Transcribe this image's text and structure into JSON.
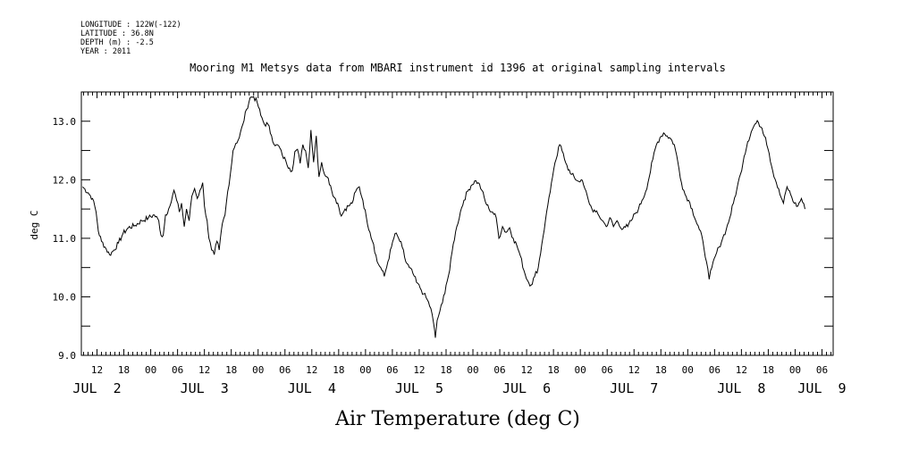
{
  "header": {
    "longitude": "LONGITUDE : 122W(-122)",
    "latitude": "LATITUDE : 36.8N",
    "depth": "DEPTH (m) : -2.5",
    "year": "YEAR : 2011"
  },
  "chart_data": {
    "type": "line",
    "title": "Mooring M1 Metsys data from MBARI instrument id 1396 at original sampling intervals",
    "xlabel": "Air Temperature (deg C)",
    "ylabel": "deg C",
    "ylim": [
      9.0,
      13.5
    ],
    "xlim": [
      8.5,
      176.5
    ],
    "x_units": "hours since JUL 2 00:00",
    "y_ticks": [
      {
        "value": 9.0,
        "label": "9.0"
      },
      {
        "value": 10.0,
        "label": "10.0"
      },
      {
        "value": 11.0,
        "label": "11.0"
      },
      {
        "value": 12.0,
        "label": "12.0"
      },
      {
        "value": 13.0,
        "label": "13.0"
      }
    ],
    "x_ticks": [
      {
        "value": 12,
        "label": "12"
      },
      {
        "value": 18,
        "label": "18"
      },
      {
        "value": 24,
        "label": "00"
      },
      {
        "value": 30,
        "label": "06"
      },
      {
        "value": 36,
        "label": "12"
      },
      {
        "value": 42,
        "label": "18"
      },
      {
        "value": 48,
        "label": "00"
      },
      {
        "value": 54,
        "label": "06"
      },
      {
        "value": 60,
        "label": "12"
      },
      {
        "value": 66,
        "label": "18"
      },
      {
        "value": 72,
        "label": "00"
      },
      {
        "value": 78,
        "label": "06"
      },
      {
        "value": 84,
        "label": "12"
      },
      {
        "value": 90,
        "label": "18"
      },
      {
        "value": 96,
        "label": "00"
      },
      {
        "value": 102,
        "label": "06"
      },
      {
        "value": 108,
        "label": "12"
      },
      {
        "value": 114,
        "label": "18"
      },
      {
        "value": 120,
        "label": "00"
      },
      {
        "value": 126,
        "label": "06"
      },
      {
        "value": 132,
        "label": "12"
      },
      {
        "value": 138,
        "label": "18"
      },
      {
        "value": 144,
        "label": "00"
      },
      {
        "value": 150,
        "label": "06"
      },
      {
        "value": 156,
        "label": "12"
      },
      {
        "value": 162,
        "label": "18"
      },
      {
        "value": 168,
        "label": "00"
      },
      {
        "value": 174,
        "label": "06"
      }
    ],
    "day_labels": [
      {
        "value": 12,
        "label": "JUL  2"
      },
      {
        "value": 36,
        "label": "JUL  3"
      },
      {
        "value": 60,
        "label": "JUL  4"
      },
      {
        "value": 84,
        "label": "JUL  5"
      },
      {
        "value": 108,
        "label": "JUL  6"
      },
      {
        "value": 132,
        "label": "JUL  7"
      },
      {
        "value": 156,
        "label": "JUL  8"
      },
      {
        "value": 174,
        "label": "JUL  9"
      }
    ],
    "series": [
      {
        "points": [
          [
            8.8,
            11.88
          ],
          [
            10,
            11.78
          ],
          [
            11,
            11.68
          ],
          [
            11.8,
            11.45
          ],
          [
            12.3,
            11.12
          ],
          [
            13,
            10.95
          ],
          [
            13.8,
            10.85
          ],
          [
            14.8,
            10.72
          ],
          [
            15.8,
            10.8
          ],
          [
            16.8,
            10.92
          ],
          [
            17.8,
            11.08
          ],
          [
            19,
            11.18
          ],
          [
            20.5,
            11.22
          ],
          [
            22,
            11.3
          ],
          [
            23.5,
            11.35
          ],
          [
            24.8,
            11.4
          ],
          [
            25.8,
            11.3
          ],
          [
            26.3,
            11.05
          ],
          [
            26.8,
            11.05
          ],
          [
            27.3,
            11.4
          ],
          [
            28,
            11.5
          ],
          [
            28.6,
            11.62
          ],
          [
            29.2,
            11.82
          ],
          [
            29.8,
            11.65
          ],
          [
            30.4,
            11.45
          ],
          [
            30.9,
            11.6
          ],
          [
            31.5,
            11.2
          ],
          [
            32,
            11.5
          ],
          [
            32.6,
            11.3
          ],
          [
            33.2,
            11.72
          ],
          [
            33.8,
            11.85
          ],
          [
            34.4,
            11.68
          ],
          [
            35,
            11.82
          ],
          [
            35.6,
            11.95
          ],
          [
            36,
            11.55
          ],
          [
            36.6,
            11.3
          ],
          [
            37,
            11.0
          ],
          [
            37.6,
            10.8
          ],
          [
            38.2,
            10.72
          ],
          [
            38.8,
            10.95
          ],
          [
            39.3,
            10.8
          ],
          [
            40,
            11.25
          ],
          [
            40.6,
            11.4
          ],
          [
            41.2,
            11.8
          ],
          [
            41.8,
            12.1
          ],
          [
            42.4,
            12.5
          ],
          [
            43,
            12.62
          ],
          [
            43.8,
            12.72
          ],
          [
            44.6,
            12.95
          ],
          [
            45.4,
            13.2
          ],
          [
            46.2,
            13.4
          ],
          [
            47,
            13.42
          ],
          [
            47.8,
            13.32
          ],
          [
            48.6,
            13.1
          ],
          [
            49.4,
            12.95
          ],
          [
            50.2,
            12.95
          ],
          [
            51,
            12.75
          ],
          [
            51.8,
            12.58
          ],
          [
            52.6,
            12.58
          ],
          [
            53.4,
            12.42
          ],
          [
            54.2,
            12.32
          ],
          [
            55,
            12.2
          ],
          [
            55.6,
            12.15
          ],
          [
            56.2,
            12.48
          ],
          [
            56.8,
            12.52
          ],
          [
            57.4,
            12.28
          ],
          [
            58,
            12.6
          ],
          [
            58.6,
            12.5
          ],
          [
            59.2,
            12.2
          ],
          [
            59.8,
            12.85
          ],
          [
            60.4,
            12.3
          ],
          [
            61,
            12.75
          ],
          [
            61.6,
            12.05
          ],
          [
            62.2,
            12.3
          ],
          [
            62.8,
            12.1
          ],
          [
            63.4,
            12.05
          ],
          [
            64.2,
            11.9
          ],
          [
            65,
            11.7
          ],
          [
            65.8,
            11.6
          ],
          [
            66.6,
            11.38
          ],
          [
            67.4,
            11.5
          ],
          [
            68.2,
            11.55
          ],
          [
            69,
            11.6
          ],
          [
            69.8,
            11.8
          ],
          [
            70.6,
            11.88
          ],
          [
            71.4,
            11.65
          ],
          [
            72.2,
            11.35
          ],
          [
            73,
            11.1
          ],
          [
            73.8,
            10.9
          ],
          [
            74.6,
            10.6
          ],
          [
            75.4,
            10.5
          ],
          [
            76.2,
            10.35
          ],
          [
            77,
            10.6
          ],
          [
            77.8,
            10.85
          ],
          [
            78.6,
            11.08
          ],
          [
            79.4,
            11.0
          ],
          [
            80.2,
            10.85
          ],
          [
            81,
            10.6
          ],
          [
            81.8,
            10.5
          ],
          [
            82.6,
            10.4
          ],
          [
            83.4,
            10.25
          ],
          [
            84.2,
            10.15
          ],
          [
            85,
            10.05
          ],
          [
            85.8,
            9.95
          ],
          [
            86.6,
            9.8
          ],
          [
            87.2,
            9.55
          ],
          [
            87.6,
            9.3
          ],
          [
            88,
            9.6
          ],
          [
            88.6,
            9.75
          ],
          [
            89.2,
            9.9
          ],
          [
            90,
            10.2
          ],
          [
            90.8,
            10.45
          ],
          [
            91.6,
            10.9
          ],
          [
            92.4,
            11.2
          ],
          [
            93.2,
            11.45
          ],
          [
            94,
            11.65
          ],
          [
            94.8,
            11.8
          ],
          [
            95.6,
            11.9
          ],
          [
            96.4,
            11.98
          ],
          [
            97.2,
            11.95
          ],
          [
            98,
            11.82
          ],
          [
            98.8,
            11.62
          ],
          [
            99.6,
            11.5
          ],
          [
            100.4,
            11.45
          ],
          [
            101.2,
            11.35
          ],
          [
            101.8,
            11.0
          ],
          [
            102.6,
            11.2
          ],
          [
            103.4,
            11.1
          ],
          [
            104.2,
            11.18
          ],
          [
            105,
            11.0
          ],
          [
            105.8,
            10.88
          ],
          [
            106.6,
            10.7
          ],
          [
            107.4,
            10.45
          ],
          [
            108.2,
            10.28
          ],
          [
            109,
            10.2
          ],
          [
            109.8,
            10.35
          ],
          [
            110.6,
            10.5
          ],
          [
            111.4,
            10.9
          ],
          [
            112.2,
            11.3
          ],
          [
            113,
            11.7
          ],
          [
            113.8,
            12.05
          ],
          [
            114.6,
            12.35
          ],
          [
            115.4,
            12.6
          ],
          [
            116.2,
            12.45
          ],
          [
            117,
            12.25
          ],
          [
            117.8,
            12.1
          ],
          [
            118.6,
            12.05
          ],
          [
            119.4,
            11.98
          ],
          [
            120.2,
            12.0
          ],
          [
            121,
            11.85
          ],
          [
            121.8,
            11.65
          ],
          [
            122.6,
            11.5
          ],
          [
            123.4,
            11.45
          ],
          [
            124.2,
            11.38
          ],
          [
            125,
            11.3
          ],
          [
            125.8,
            11.2
          ],
          [
            126.6,
            11.35
          ],
          [
            127.4,
            11.2
          ],
          [
            128.2,
            11.3
          ],
          [
            129,
            11.18
          ],
          [
            129.8,
            11.2
          ],
          [
            130.6,
            11.2
          ],
          [
            131.4,
            11.3
          ],
          [
            132.2,
            11.42
          ],
          [
            133,
            11.5
          ],
          [
            133.8,
            11.65
          ],
          [
            134.6,
            11.8
          ],
          [
            135.4,
            12.05
          ],
          [
            136.2,
            12.35
          ],
          [
            137,
            12.6
          ],
          [
            137.8,
            12.72
          ],
          [
            138.6,
            12.8
          ],
          [
            139.4,
            12.75
          ],
          [
            140.2,
            12.7
          ],
          [
            141,
            12.6
          ],
          [
            141.8,
            12.3
          ],
          [
            142.6,
            11.95
          ],
          [
            143.4,
            11.75
          ],
          [
            144.2,
            11.65
          ],
          [
            145,
            11.5
          ],
          [
            145.8,
            11.3
          ],
          [
            146.6,
            11.15
          ],
          [
            147.4,
            10.95
          ],
          [
            148.2,
            10.6
          ],
          [
            148.8,
            10.3
          ],
          [
            149.4,
            10.5
          ],
          [
            150.2,
            10.7
          ],
          [
            151,
            10.85
          ],
          [
            151.8,
            11.0
          ],
          [
            152.6,
            11.15
          ],
          [
            153.4,
            11.35
          ],
          [
            154.2,
            11.6
          ],
          [
            155,
            11.85
          ],
          [
            155.8,
            12.1
          ],
          [
            156.6,
            12.4
          ],
          [
            157.4,
            12.65
          ],
          [
            158.2,
            12.82
          ],
          [
            159,
            12.95
          ],
          [
            159.8,
            12.98
          ],
          [
            160.6,
            12.88
          ],
          [
            161.4,
            12.72
          ],
          [
            162.2,
            12.45
          ],
          [
            163,
            12.15
          ],
          [
            163.8,
            11.95
          ],
          [
            164.6,
            11.75
          ],
          [
            165.4,
            11.6
          ],
          [
            166.2,
            11.88
          ],
          [
            167,
            11.75
          ],
          [
            167.8,
            11.6
          ],
          [
            168.6,
            11.55
          ],
          [
            169.4,
            11.68
          ],
          [
            170.2,
            11.5
          ]
        ]
      }
    ]
  }
}
